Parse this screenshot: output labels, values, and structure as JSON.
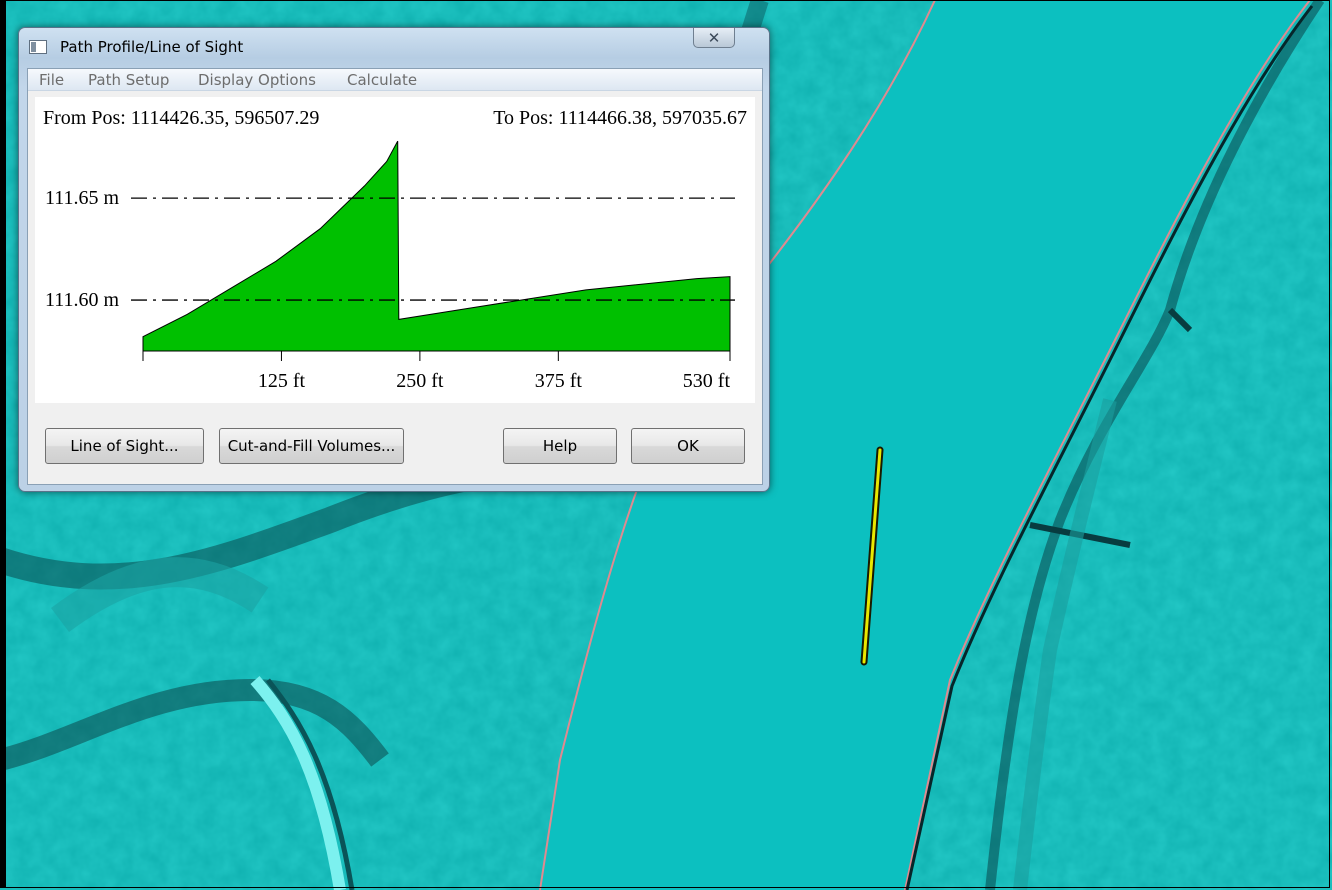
{
  "window": {
    "title": "Path Profile/Line of Sight",
    "close_glyph": "✕"
  },
  "menu": [
    "File",
    "Path Setup",
    "Display Options",
    "Calculate"
  ],
  "profile": {
    "from_pos": "From Pos: 1114426.35, 596507.29",
    "to_pos": "To Pos: 1114466.38, 597035.67"
  },
  "chart_data": {
    "type": "area",
    "fill_color": "#00c000",
    "reference_lines": [
      {
        "label": "111.65 m",
        "value": 111.65
      },
      {
        "label": "111.60 m",
        "value": 111.6
      }
    ],
    "x_tick_labels": [
      {
        "label": "125 ft",
        "value": 125
      },
      {
        "label": "250 ft",
        "value": 250
      },
      {
        "label": "375 ft",
        "value": 375
      },
      {
        "label": "530 ft",
        "value": 530
      }
    ],
    "xlim": [
      0,
      530
    ],
    "ylim": [
      111.575,
      111.68
    ],
    "x": [
      0,
      40,
      80,
      120,
      160,
      200,
      220,
      230,
      231,
      300,
      400,
      500,
      530
    ],
    "y": [
      111.582,
      111.593,
      111.606,
      111.619,
      111.635,
      111.656,
      111.668,
      111.678,
      111.5905,
      111.5965,
      111.605,
      111.6105,
      111.6115
    ]
  },
  "buttons": {
    "line_of_sight": "Line of Sight...",
    "cut_fill": "Cut-and-Fill Volumes...",
    "help": "Help",
    "ok": "OK"
  },
  "map": {
    "path_color": "#e8e800"
  }
}
